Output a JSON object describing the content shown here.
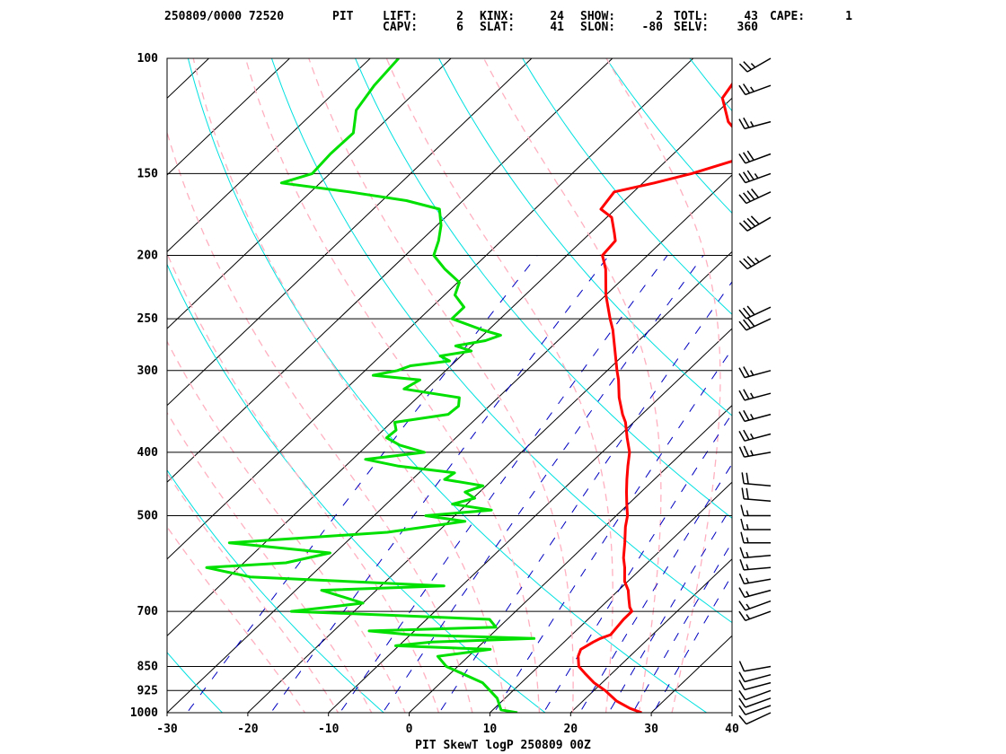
{
  "header": {
    "line1": [
      {
        "text": "250809/0000 72520"
      },
      {
        "text": "PIT"
      },
      {
        "text": "LIFT:"
      },
      {
        "text": "2"
      },
      {
        "text": "KINX:"
      },
      {
        "text": "24"
      },
      {
        "text": "SHOW:"
      },
      {
        "text": "2"
      },
      {
        "text": "TOTL:"
      },
      {
        "text": "43"
      },
      {
        "text": "CAPE:"
      },
      {
        "text": "1"
      }
    ],
    "line2": [
      {
        "text": "CAPV:"
      },
      {
        "text": "6"
      },
      {
        "text": "SLAT:"
      },
      {
        "text": "41"
      },
      {
        "text": "SLON:"
      },
      {
        "text": "-80"
      },
      {
        "text": "SELV:"
      },
      {
        "text": "360"
      }
    ]
  },
  "colors": {
    "temperature": "#ff0000",
    "dewpoint": "#00e000",
    "isotherm": "#000000",
    "dry_adiabat": "#00e0e0",
    "moist_adiabat": "#ffb0c0",
    "mixing_ratio": "#0000c0",
    "isobar": "#000000"
  },
  "chart_data": {
    "type": "skewT-logP",
    "title": "PIT SkewT logP 250809 00Z",
    "xlim": [
      -30,
      40
    ],
    "ylim": [
      1000,
      100
    ],
    "x_ticks": [
      -30,
      -20,
      -10,
      0,
      10,
      20,
      30,
      40
    ],
    "pressure_levels": [
      100,
      150,
      200,
      250,
      300,
      400,
      500,
      700,
      850,
      925,
      1000
    ],
    "temperature": {
      "p": [
        1000,
        985,
        960,
        925,
        900,
        870,
        850,
        820,
        800,
        780,
        770,
        760,
        740,
        720,
        700,
        690,
        670,
        650,
        630,
        600,
        580,
        550,
        520,
        500,
        480,
        460,
        440,
        420,
        400,
        380,
        360,
        350,
        330,
        310,
        300,
        280,
        260,
        250,
        230,
        210,
        200,
        190,
        185,
        175,
        170,
        160,
        155,
        150,
        140,
        125,
        115,
        105,
        100
      ],
      "t": [
        28.8,
        26.8,
        24.2,
        21.4,
        19.0,
        16.6,
        15.0,
        13.6,
        13.0,
        13.6,
        14.0,
        14.8,
        14.6,
        14.4,
        14.4,
        13.6,
        12.4,
        11.2,
        9.6,
        7.8,
        6.4,
        4.6,
        2.6,
        1.4,
        -0.2,
        -1.8,
        -3.4,
        -5.0,
        -6.6,
        -8.8,
        -11.0,
        -12.4,
        -15.0,
        -17.4,
        -18.8,
        -21.6,
        -24.6,
        -26.4,
        -30.0,
        -33.4,
        -35.6,
        -35.9,
        -37.0,
        -39.4,
        -41.8,
        -42.4,
        -38.6,
        -35.2,
        -29.8,
        -37.4,
        -41.2,
        -42.3,
        -42.5
      ]
    },
    "dewpoint": {
      "p": [
        1000,
        990,
        950,
        900,
        850,
        820,
        800,
        790,
        780,
        770,
        760,
        750,
        740,
        720,
        710,
        700,
        680,
        650,
        640,
        620,
        600,
        590,
        570,
        550,
        530,
        510,
        500,
        490,
        480,
        470,
        460,
        450,
        440,
        430,
        420,
        410,
        400,
        390,
        380,
        370,
        360,
        350,
        340,
        330,
        320,
        310,
        305,
        300,
        295,
        290,
        285,
        280,
        275,
        270,
        265,
        260,
        250,
        240,
        230,
        220,
        210,
        200,
        190,
        180,
        170,
        165,
        160,
        155,
        150,
        140,
        130,
        120,
        110,
        100
      ],
      "td": [
        13.4,
        11.0,
        9.0,
        5.2,
        -1.4,
        -3.8,
        1.8,
        -10.4,
        -6.4,
        5.8,
        -10.0,
        -15.6,
        -0.4,
        -2.2,
        -14.4,
        -27.8,
        -20.0,
        -26.8,
        -12.2,
        -37.4,
        -44.0,
        -34.8,
        -30.6,
        -44.4,
        -26.2,
        -18.0,
        -23.6,
        -16.2,
        -21.8,
        -19.8,
        -21.8,
        -20.4,
        -26.0,
        -25.6,
        -33.4,
        -38.4,
        -32.0,
        -36.0,
        -38.6,
        -38.4,
        -39.6,
        -34.0,
        -33.8,
        -34.8,
        -42.8,
        -42.0,
        -48.4,
        -46.0,
        -45.0,
        -40.8,
        -42.6,
        -39.4,
        -42.0,
        -39.0,
        -37.8,
        -40.8,
        -46.0,
        -46.0,
        -48.7,
        -49.8,
        -53.3,
        -56.5,
        -57.8,
        -59.5,
        -61.8,
        -67.0,
        -75.2,
        -84.8,
        -82.2,
        -82.5,
        -82.4,
        -85.0,
        -86.0,
        -86.5
      ]
    },
    "wind_barbs": {
      "p": [
        1000,
        975,
        950,
        925,
        900,
        875,
        850,
        700,
        675,
        650,
        625,
        600,
        575,
        550,
        525,
        500,
        475,
        450,
        400,
        375,
        350,
        325,
        300,
        250,
        240,
        200,
        175,
        160,
        150,
        140,
        125,
        110,
        100
      ],
      "dir": [
        245,
        250,
        250,
        250,
        255,
        255,
        260,
        250,
        250,
        255,
        260,
        265,
        265,
        270,
        270,
        270,
        275,
        275,
        260,
        255,
        255,
        255,
        255,
        245,
        245,
        240,
        240,
        245,
        250,
        250,
        255,
        250,
        240
      ],
      "spd": [
        10,
        10,
        10,
        10,
        10,
        10,
        10,
        15,
        15,
        15,
        15,
        15,
        15,
        15,
        15,
        15,
        20,
        20,
        25,
        25,
        25,
        25,
        25,
        30,
        30,
        35,
        40,
        40,
        35,
        30,
        25,
        25,
        25
      ]
    },
    "grid": true
  }
}
